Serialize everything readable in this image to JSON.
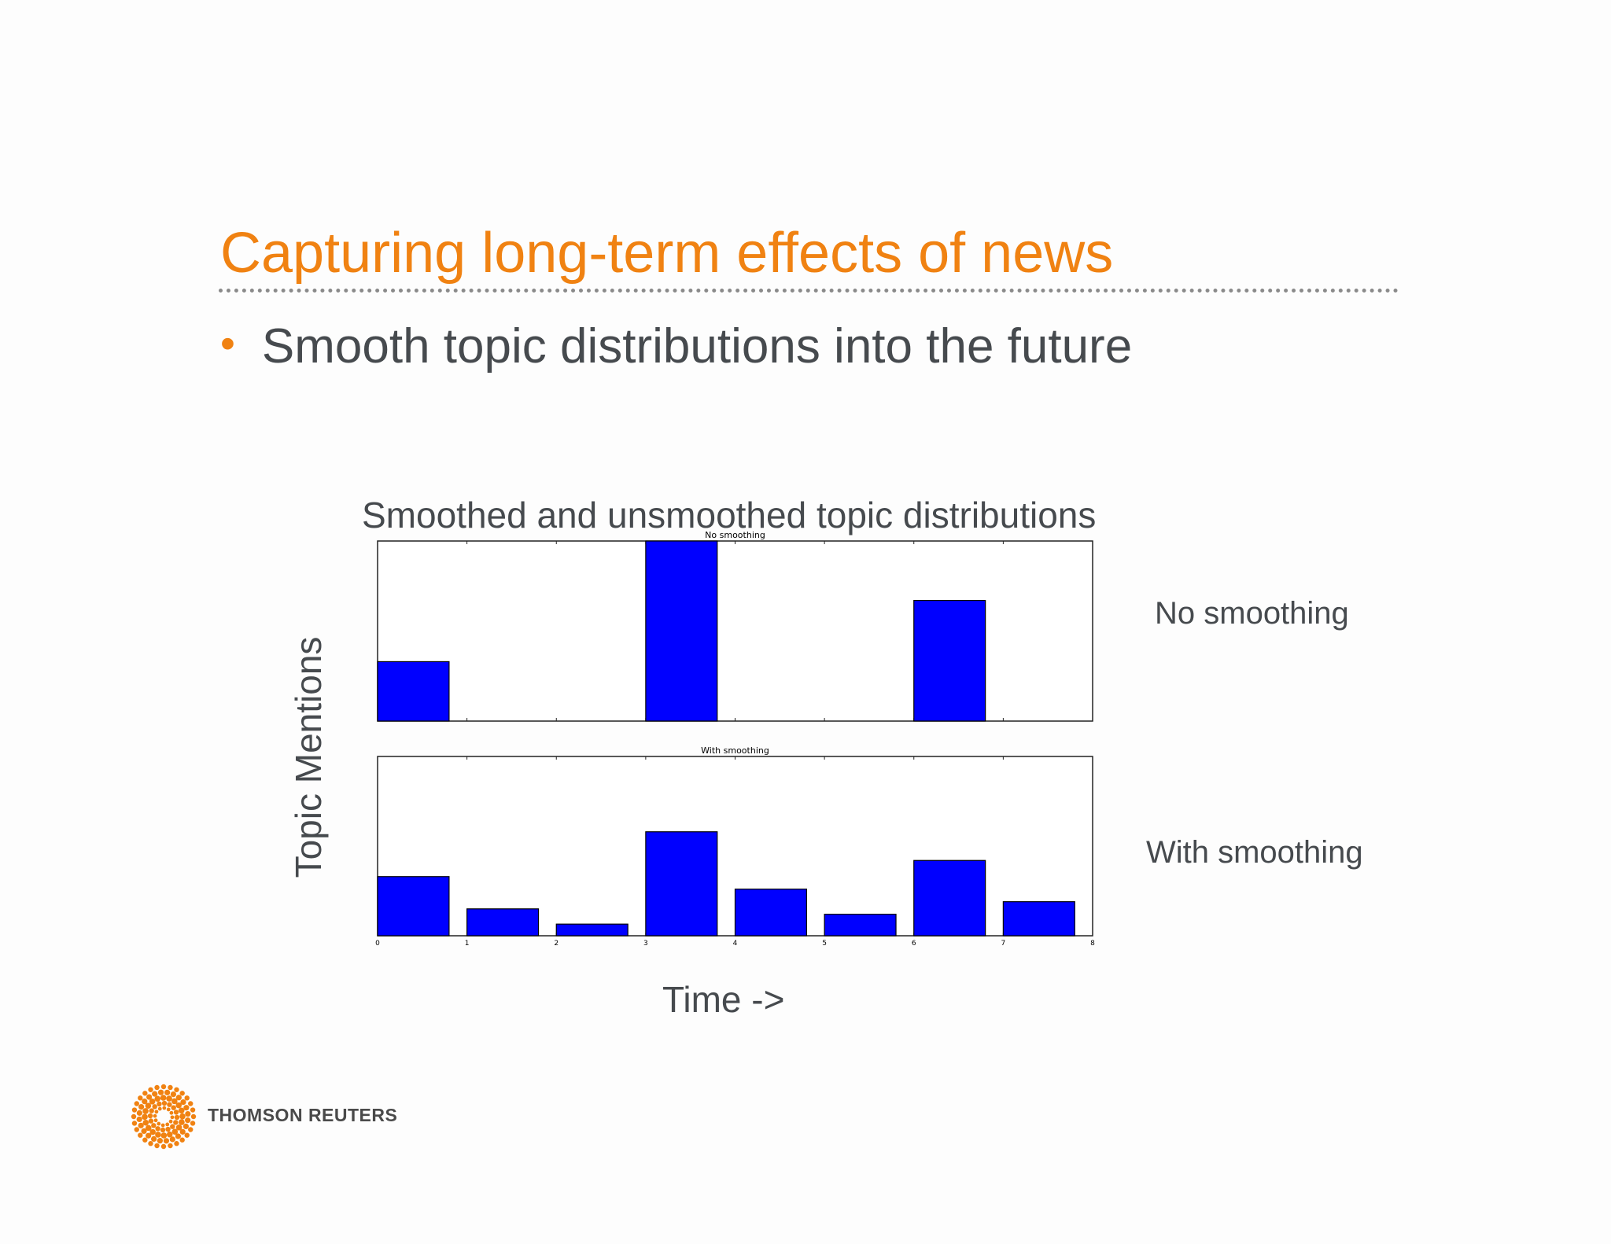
{
  "slide": {
    "title": "Capturing long-term effects of news",
    "bullet": "Smooth topic distributions into the future",
    "bullet_marker": "•"
  },
  "chart_data": {
    "type": "bar",
    "title": "Smoothed and unsmoothed topic distributions",
    "ylabel": "Topic Mentions",
    "xlabel": "Time ->",
    "x_ticks": [
      "0",
      "1",
      "2",
      "3",
      "4",
      "5",
      "6",
      "7",
      "8"
    ],
    "xlim": [
      0,
      8
    ],
    "bar_width": 0.8,
    "colors": {
      "bar": "#0000ff"
    },
    "subplots": [
      {
        "title": "No smoothing",
        "side_label": "No smoothing",
        "x": [
          0,
          1,
          2,
          3,
          4,
          5,
          6,
          7
        ],
        "values": [
          0.33,
          0,
          0,
          1.0,
          0,
          0,
          0.67,
          0
        ],
        "ylim": [
          0,
          1.0
        ]
      },
      {
        "title": "With smoothing",
        "side_label": "With smoothing",
        "x": [
          0,
          1,
          2,
          3,
          4,
          5,
          6,
          7
        ],
        "values": [
          0.33,
          0.15,
          0.065,
          0.58,
          0.26,
          0.12,
          0.42,
          0.19
        ],
        "ylim": [
          0,
          1.0
        ]
      }
    ]
  },
  "logo": {
    "text": "THOMSON REUTERS",
    "icon": "thomson-reuters-dot-ring-icon",
    "color": "#f08212"
  }
}
